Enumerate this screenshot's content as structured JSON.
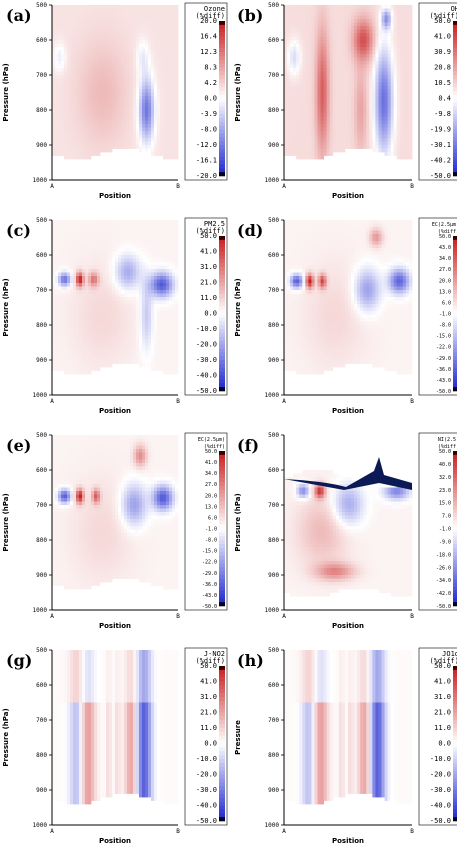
{
  "figure": {
    "panels": [
      {
        "letter": "(a)",
        "title_lines": [
          "Ozone",
          "(%diff)"
        ],
        "cb_ticks": [
          "20.0",
          "16.4",
          "12.3",
          "8.3",
          "4.2",
          "0.0",
          "-3.9",
          "-8.0",
          "-12.0",
          "-16.1",
          "-20.0"
        ]
      },
      {
        "letter": "(b)",
        "title_lines": [
          "OH",
          "(%diff)"
        ],
        "cb_ticks": [
          "50.0",
          "41.0",
          "30.9",
          "20.8",
          "10.5",
          "0.4",
          "-9.8",
          "-19.9",
          "-30.1",
          "-40.2",
          "-50.0"
        ]
      },
      {
        "letter": "(c)",
        "title_lines": [
          "PM2.5",
          "(%diff)"
        ],
        "cb_ticks": [
          "50.0",
          "41.0",
          "31.0",
          "21.0",
          "11.0",
          "0.0",
          "-10.0",
          "-20.0",
          "-30.0",
          "-40.0",
          "-50.0"
        ]
      },
      {
        "letter": "(d)",
        "title_lines": [
          "EC(2.5µm)",
          "(%diff)"
        ],
        "cb_ticks": [
          "50.0",
          "43.0",
          "34.0",
          "27.0",
          "20.0",
          "13.0",
          "6.0",
          "-1.0",
          "-8.0",
          "-15.0",
          "-22.0",
          "-29.0",
          "-36.0",
          "-43.0",
          "-50.0"
        ]
      },
      {
        "letter": "(e)",
        "title_lines": [
          "EC(2.5µm)",
          "(%diff)"
        ],
        "cb_ticks": [
          "50.0",
          "41.0",
          "34.0",
          "27.0",
          "20.0",
          "13.0",
          "6.0",
          "-1.0",
          "-8.0",
          "-15.0",
          "-22.0",
          "-29.0",
          "-36.0",
          "-43.0",
          "-50.0"
        ]
      },
      {
        "letter": "(f)",
        "title_lines": [
          "NI(2.5)",
          "(%diff)"
        ],
        "cb_ticks": [
          "50.0",
          "40.0",
          "32.0",
          "23.0",
          "15.0",
          "7.0",
          "-1.0",
          "-9.0",
          "-18.0",
          "-26.0",
          "-34.0",
          "-42.0",
          "-50.0"
        ]
      },
      {
        "letter": "(g)",
        "title_lines": [
          "J-NO2",
          "(%diff)"
        ],
        "cb_ticks": [
          "50.0",
          "41.0",
          "31.0",
          "21.0",
          "11.0",
          "0.0",
          "-10.0",
          "-20.0",
          "-30.0",
          "-40.0",
          "-50.0"
        ]
      },
      {
        "letter": "(h)",
        "title_lines": [
          "JO1d",
          "(%diff)"
        ],
        "cb_ticks": [
          "50.0",
          "41.0",
          "31.0",
          "21.0",
          "11.0",
          "0.0",
          "-10.0",
          "-20.0",
          "-30.0",
          "-40.0",
          "-50.0"
        ]
      }
    ],
    "ylabel": "Pressure (hPa)",
    "ylabel_alt": "Pressure",
    "xlabel": "Position",
    "y_ticks": [
      "500",
      "600",
      "700",
      "800",
      "900",
      "1000"
    ],
    "x_ticks": [
      "A",
      "B"
    ]
  },
  "chart_data": {
    "type": "heatmap",
    "panels": [
      "(a)",
      "(b)",
      "(c)",
      "(d)",
      "(e)",
      "(f)",
      "(g)",
      "(h)"
    ],
    "x": [
      "A",
      "B"
    ],
    "y_range": [
      1000,
      500
    ],
    "y_ticks": [
      500,
      600,
      700,
      800,
      900,
      1000
    ],
    "colors": {
      "positive": "#cc1f1f",
      "zero": "#ffffff",
      "negative": "#1f2fcc"
    }
  }
}
